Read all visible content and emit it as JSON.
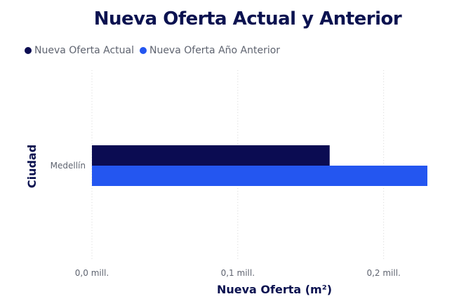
{
  "title": "Nueva Oferta Actual y Anterior",
  "legend": {
    "items": [
      {
        "label": "Nueva Oferta Actual",
        "color": "#0b0c52"
      },
      {
        "label": "Nueva Oferta Año Anterior",
        "color": "#2456f0"
      }
    ]
  },
  "chart_data": {
    "type": "bar",
    "orientation": "horizontal",
    "title": "Nueva Oferta Actual y Anterior",
    "xlabel": "Nueva Oferta (m²)",
    "ylabel": "Ciudad",
    "categories": [
      "Medellín"
    ],
    "series": [
      {
        "name": "Nueva Oferta Actual",
        "color": "#0b0c52",
        "values": [
          0.163
        ]
      },
      {
        "name": "Nueva Oferta Año Anterior",
        "color": "#2456f0",
        "values": [
          0.23
        ]
      }
    ],
    "xlim": [
      0,
      0.23
    ],
    "xticks": [
      0,
      0.1,
      0.2
    ],
    "xtick_labels": [
      "0,0 mill.",
      "0,1 mill.",
      "0,2 mill."
    ],
    "grid": "vertical dotted",
    "legend_position": "top-left"
  }
}
